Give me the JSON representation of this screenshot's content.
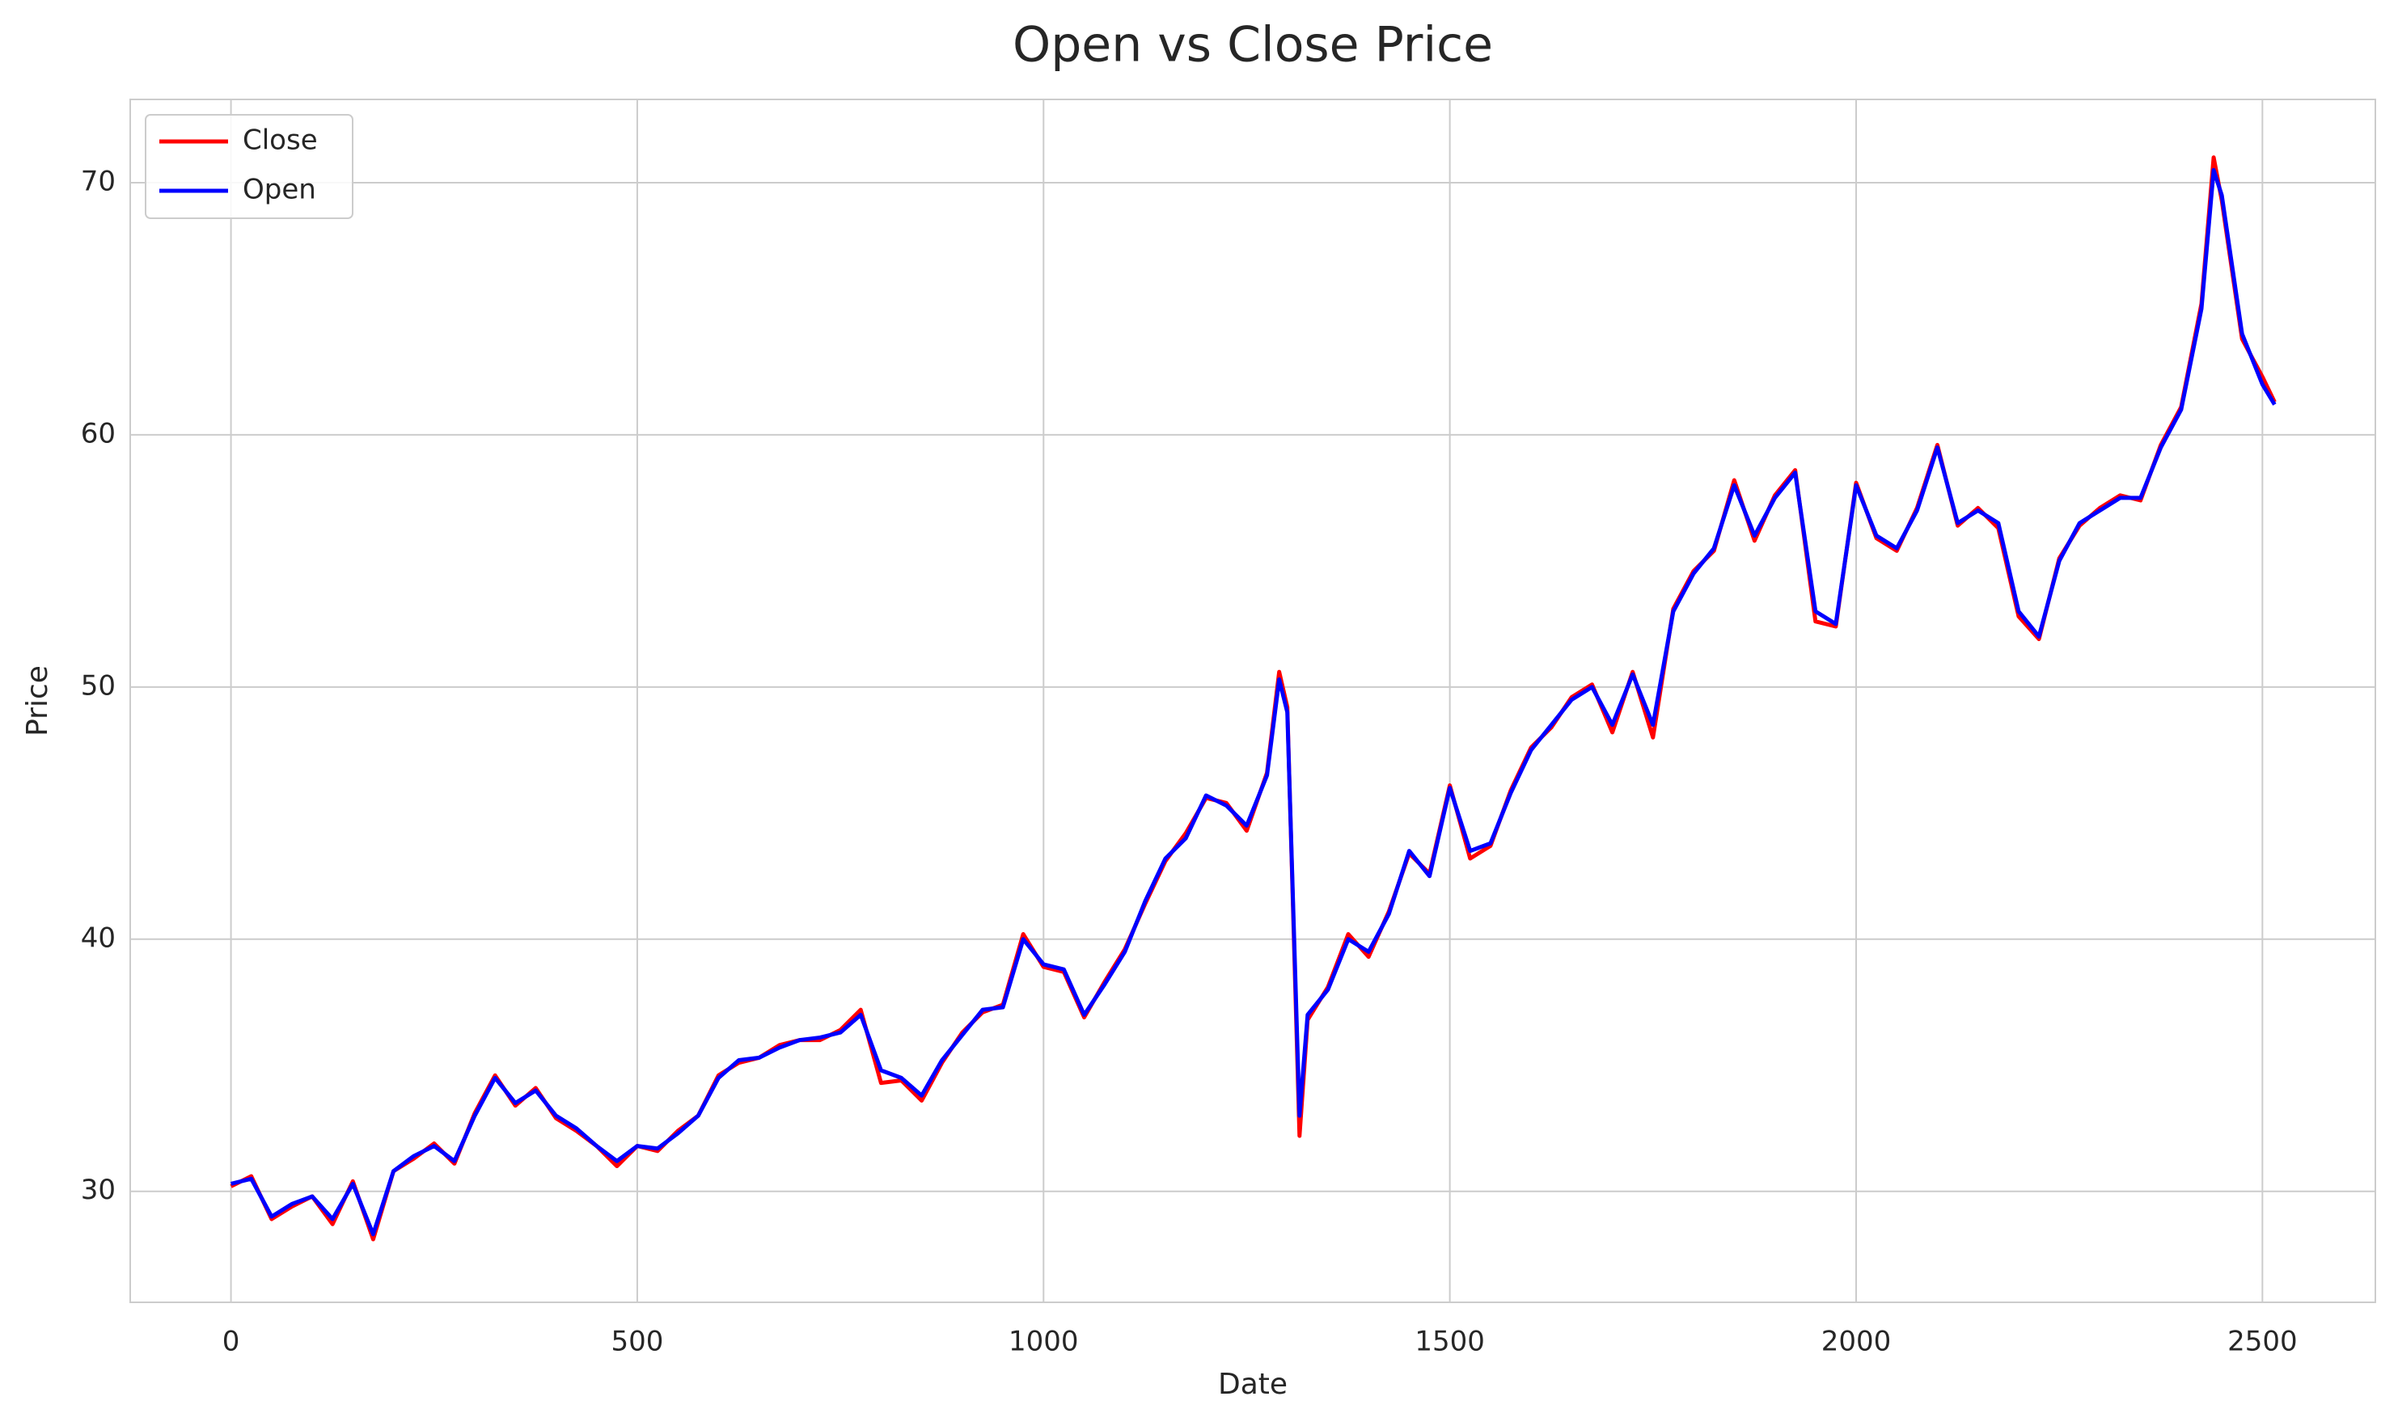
{
  "chart_data": {
    "type": "line",
    "title": "Open vs Close Price",
    "x_label": "Date",
    "y_label": "Price",
    "x": [
      0,
      25,
      50,
      75,
      100,
      125,
      150,
      175,
      200,
      225,
      250,
      275,
      300,
      325,
      350,
      375,
      400,
      425,
      450,
      475,
      500,
      525,
      550,
      575,
      600,
      625,
      650,
      675,
      700,
      725,
      750,
      775,
      800,
      825,
      850,
      875,
      900,
      925,
      950,
      975,
      1000,
      1025,
      1050,
      1075,
      1100,
      1125,
      1150,
      1175,
      1200,
      1225,
      1250,
      1275,
      1290,
      1300,
      1315,
      1325,
      1350,
      1375,
      1400,
      1425,
      1450,
      1475,
      1500,
      1525,
      1550,
      1575,
      1600,
      1625,
      1650,
      1675,
      1700,
      1725,
      1750,
      1775,
      1800,
      1825,
      1850,
      1875,
      1900,
      1925,
      1950,
      1975,
      2000,
      2025,
      2050,
      2075,
      2100,
      2125,
      2150,
      2175,
      2200,
      2225,
      2250,
      2275,
      2300,
      2325,
      2350,
      2375,
      2400,
      2425,
      2440,
      2450,
      2475,
      2500,
      2515
    ],
    "series": [
      {
        "name": "Close",
        "color": "#ff0000",
        "values": [
          30.2,
          30.6,
          28.9,
          29.4,
          29.8,
          28.7,
          30.4,
          28.1,
          30.8,
          31.3,
          31.9,
          31.1,
          33.1,
          34.6,
          33.4,
          34.1,
          32.9,
          32.4,
          31.8,
          31.0,
          31.8,
          31.6,
          32.4,
          33.0,
          34.6,
          35.1,
          35.3,
          35.8,
          36.0,
          36.0,
          36.4,
          37.2,
          34.3,
          34.4,
          33.6,
          35.1,
          36.3,
          37.1,
          37.4,
          40.2,
          38.9,
          38.7,
          36.9,
          38.3,
          39.6,
          41.4,
          43.1,
          44.2,
          45.6,
          45.4,
          44.3,
          46.6,
          50.6,
          49.2,
          32.2,
          36.8,
          38.1,
          40.2,
          39.3,
          41.1,
          43.4,
          42.6,
          46.1,
          43.2,
          43.7,
          45.9,
          47.6,
          48.4,
          49.6,
          50.1,
          48.2,
          50.6,
          48.0,
          53.1,
          54.6,
          55.4,
          58.2,
          55.8,
          57.6,
          58.6,
          52.6,
          52.4,
          58.1,
          55.9,
          55.4,
          57.1,
          59.6,
          56.4,
          57.1,
          56.3,
          52.8,
          51.9,
          55.1,
          56.4,
          57.1,
          57.6,
          57.4,
          59.6,
          61.1,
          65.2,
          71.0,
          69.3,
          63.8,
          62.3,
          61.3
        ]
      },
      {
        "name": "Open",
        "color": "#0000ff",
        "values": [
          30.3,
          30.5,
          29.0,
          29.5,
          29.8,
          28.9,
          30.3,
          28.3,
          30.8,
          31.4,
          31.8,
          31.2,
          33.0,
          34.5,
          33.5,
          34.0,
          33.0,
          32.5,
          31.8,
          31.2,
          31.8,
          31.7,
          32.3,
          33.0,
          34.5,
          35.2,
          35.3,
          35.7,
          36.0,
          36.1,
          36.3,
          37.0,
          34.8,
          34.5,
          33.8,
          35.2,
          36.2,
          37.2,
          37.3,
          40.0,
          39.0,
          38.8,
          37.0,
          38.2,
          39.5,
          41.5,
          43.2,
          44.0,
          45.7,
          45.3,
          44.5,
          46.5,
          50.3,
          49.0,
          33.0,
          37.0,
          38.0,
          40.0,
          39.5,
          41.0,
          43.5,
          42.5,
          46.0,
          43.5,
          43.8,
          45.8,
          47.5,
          48.5,
          49.5,
          50.0,
          48.5,
          50.5,
          48.5,
          53.0,
          54.5,
          55.5,
          58.0,
          56.0,
          57.5,
          58.5,
          53.0,
          52.5,
          58.0,
          56.0,
          55.5,
          57.0,
          59.5,
          56.5,
          57.0,
          56.5,
          53.0,
          52.0,
          55.0,
          56.5,
          57.0,
          57.5,
          57.5,
          59.5,
          61.0,
          65.0,
          70.5,
          69.5,
          64.0,
          62.0,
          61.2
        ]
      }
    ],
    "xlim": [
      -124,
      2639
    ],
    "ylim": [
      25.6,
      73.3
    ],
    "xticks": [
      0,
      500,
      1000,
      1500,
      2000,
      2500
    ],
    "yticks": [
      30,
      40,
      50,
      60,
      70
    ],
    "grid": true,
    "legend": "upper left"
  }
}
